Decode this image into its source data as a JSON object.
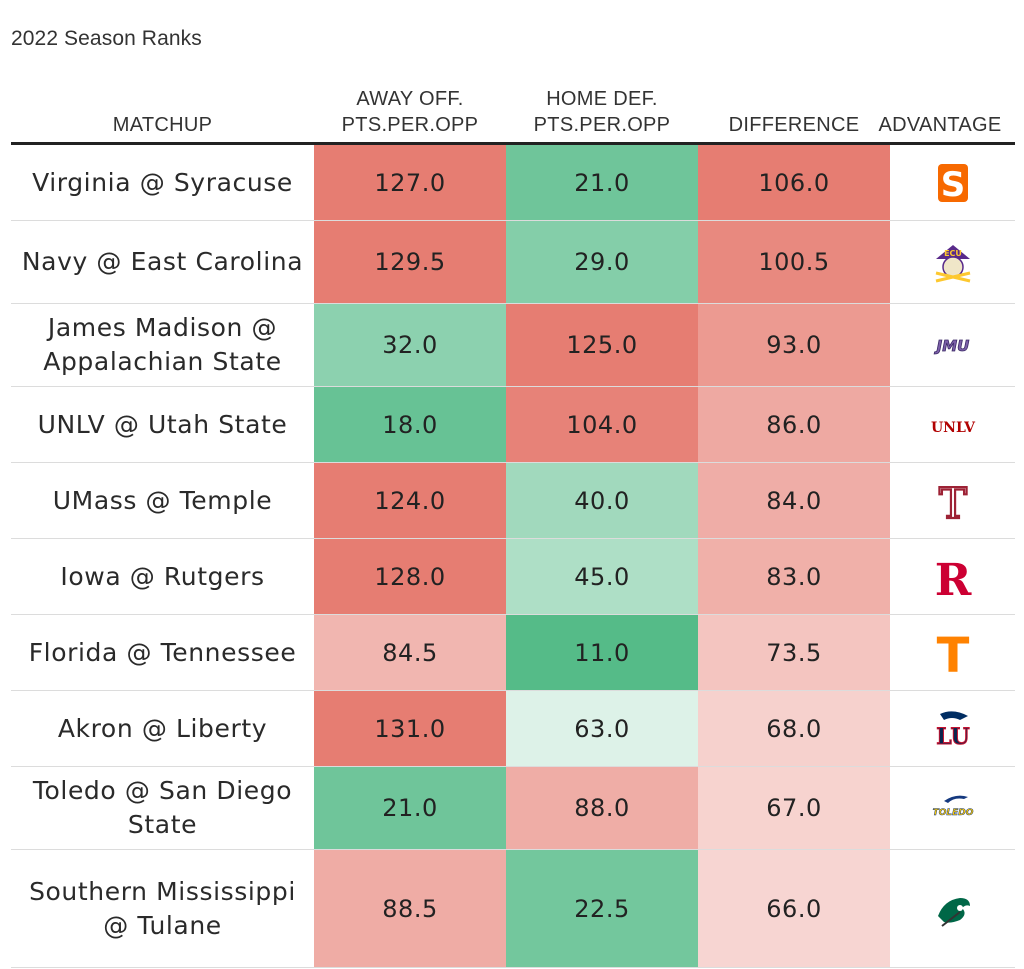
{
  "caption": "2022 Season Ranks",
  "headers": {
    "matchup": "MATCHUP",
    "away_off": "AWAY OFF.\nPTS.PER.OPP",
    "home_def": "HOME DEF.\nPTS.PER.OPP",
    "difference": "DIFFERENCE",
    "advantage": "ADVANTAGE"
  },
  "colors": {
    "red_max": "#e67d72",
    "green_max": "#55bb88",
    "neutral": "#ffffff"
  },
  "chart_data": {
    "type": "table",
    "title": "2022 Season Ranks",
    "columns": [
      "MATCHUP",
      "AWAY OFF. PTS.PER.OPP",
      "HOME DEF. PTS.PER.OPP",
      "DIFFERENCE",
      "ADVANTAGE"
    ],
    "rows": [
      {
        "matchup": "Virginia @ Syracuse",
        "away_off": 127.0,
        "home_def": 21.0,
        "difference": 106.0,
        "advantage": "syracuse-logo",
        "away_off_text": "127.0",
        "home_def_text": "21.0",
        "difference_text": "106.0"
      },
      {
        "matchup": "Navy @ East Carolina",
        "away_off": 129.5,
        "home_def": 29.0,
        "difference": 100.5,
        "advantage": "east-carolina-logo",
        "away_off_text": "129.5",
        "home_def_text": "29.0",
        "difference_text": "100.5"
      },
      {
        "matchup": "James Madison @ Appalachian State",
        "away_off": 32.0,
        "home_def": 125.0,
        "difference": 93.0,
        "advantage": "jmu-logo",
        "away_off_text": "32.0",
        "home_def_text": "125.0",
        "difference_text": "93.0"
      },
      {
        "matchup": "UNLV @ Utah State",
        "away_off": 18.0,
        "home_def": 104.0,
        "difference": 86.0,
        "advantage": "unlv-logo",
        "away_off_text": "18.0",
        "home_def_text": "104.0",
        "difference_text": "86.0"
      },
      {
        "matchup": "UMass @ Temple",
        "away_off": 124.0,
        "home_def": 40.0,
        "difference": 84.0,
        "advantage": "temple-logo",
        "away_off_text": "124.0",
        "home_def_text": "40.0",
        "difference_text": "84.0"
      },
      {
        "matchup": "Iowa @ Rutgers",
        "away_off": 128.0,
        "home_def": 45.0,
        "difference": 83.0,
        "advantage": "rutgers-logo",
        "away_off_text": "128.0",
        "home_def_text": "45.0",
        "difference_text": "83.0"
      },
      {
        "matchup": "Florida @ Tennessee",
        "away_off": 84.5,
        "home_def": 11.0,
        "difference": 73.5,
        "advantage": "tennessee-logo",
        "away_off_text": "84.5",
        "home_def_text": "11.0",
        "difference_text": "73.5"
      },
      {
        "matchup": "Akron @ Liberty",
        "away_off": 131.0,
        "home_def": 63.0,
        "difference": 68.0,
        "advantage": "liberty-logo",
        "away_off_text": "131.0",
        "home_def_text": "63.0",
        "difference_text": "68.0"
      },
      {
        "matchup": "Toledo @ San Diego State",
        "away_off": 21.0,
        "home_def": 88.0,
        "difference": 67.0,
        "advantage": "toledo-logo",
        "away_off_text": "21.0",
        "home_def_text": "88.0",
        "difference_text": "67.0"
      },
      {
        "matchup": "Southern Mississippi @ Tulane",
        "away_off": 88.5,
        "home_def": 22.5,
        "difference": 66.0,
        "advantage": "tulane-logo",
        "away_off_text": "88.5",
        "home_def_text": "22.5",
        "difference_text": "66.0"
      }
    ]
  },
  "logos": {
    "syracuse_letter": "S",
    "ecu_letters": "ECU",
    "jmu_letters": "JMU",
    "unlv_letters": "UNLV",
    "temple_letter": "T",
    "rutgers_letter": "R",
    "tennessee_letter": "T",
    "liberty_letters": "LU",
    "toledo_letters": "TOLEDO"
  }
}
